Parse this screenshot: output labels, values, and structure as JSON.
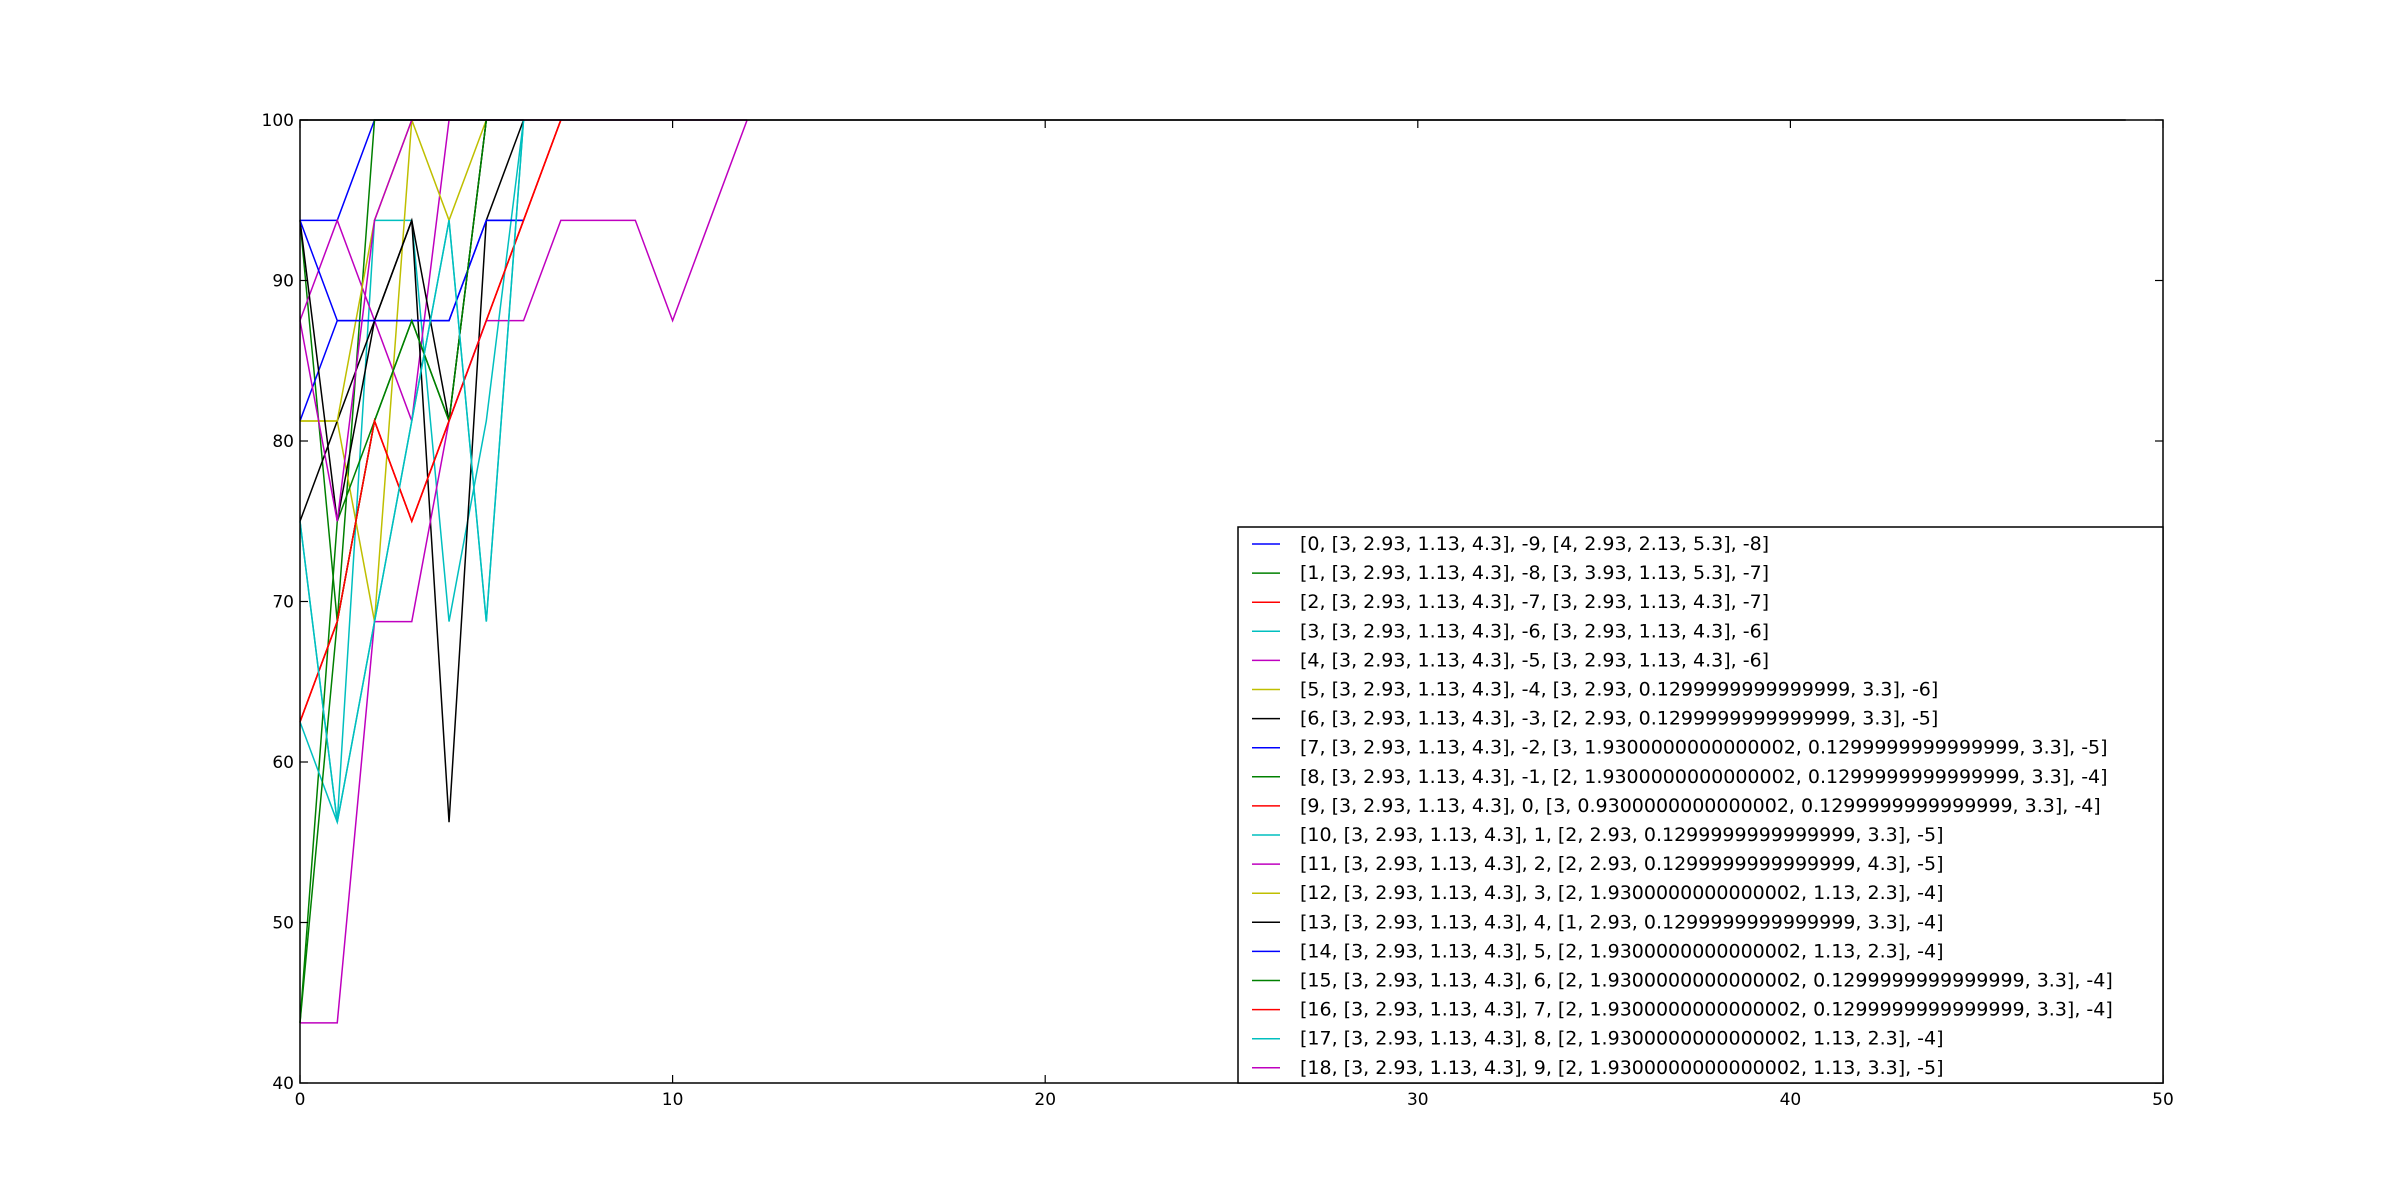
{
  "chart_data": {
    "type": "line",
    "title": "",
    "xlabel": "",
    "ylabel": "",
    "xlim": [
      0,
      50
    ],
    "ylim": [
      40,
      100
    ],
    "xticks": [
      0,
      10,
      20,
      30,
      40,
      50
    ],
    "yticks": [
      40,
      50,
      60,
      70,
      80,
      90,
      100
    ],
    "grid": false,
    "legend_position": "lower-right",
    "series": [
      {
        "name": "[0, [3, 2.93, 1.13, 4.3], -9, [4, 2.93, 2.13, 5.3], -8]",
        "color": "#0000ff",
        "x": [
          0,
          1,
          2,
          3,
          4,
          5,
          6
        ],
        "y": [
          93.75,
          93.75,
          100,
          100,
          100,
          100,
          100
        ]
      },
      {
        "name": "[1, [3, 2.93, 1.13, 4.3], -8, [3, 3.93, 1.13, 5.3], -7]",
        "color": "#008000",
        "x": [
          0,
          1,
          2,
          3,
          4,
          5,
          6
        ],
        "y": [
          93.75,
          68.75,
          100,
          100,
          100,
          100,
          100
        ]
      },
      {
        "name": "[2, [3, 2.93, 1.13, 4.3], -7, [3, 2.93, 1.13, 4.3], -7]",
        "color": "#ff0000",
        "x": [
          0,
          1,
          2,
          3,
          4,
          5,
          6,
          7
        ],
        "y": [
          62.5,
          68.75,
          81.25,
          75,
          81.25,
          87.5,
          93.75,
          100
        ]
      },
      {
        "name": "[3, [3, 2.93, 1.13, 4.3], -6, [3, 2.93, 1.13, 4.3], -6]",
        "color": "#00bfbf",
        "x": [
          0,
          1,
          2,
          3,
          4,
          5,
          6
        ],
        "y": [
          75,
          56.25,
          93.75,
          93.75,
          68.75,
          81.25,
          100
        ]
      },
      {
        "name": "[4, [3, 2.93, 1.13, 4.3], -5, [3, 2.93, 1.13, 4.3], -6]",
        "color": "#bf00bf",
        "x": [
          0,
          1,
          2,
          3,
          4
        ],
        "y": [
          87.5,
          93.75,
          87.5,
          81.25,
          100
        ]
      },
      {
        "name": "[5, [3, 2.93, 1.13, 4.3], -4, [3, 2.93, 0.1299999999999999, 3.3], -6]",
        "color": "#bfbf00",
        "x": [
          0,
          1,
          2,
          3,
          4,
          5
        ],
        "y": [
          81.25,
          81.25,
          68.75,
          100,
          93.75,
          100
        ]
      },
      {
        "name": "[6, [3, 2.93, 1.13, 4.3], -3, [2, 2.93, 0.1299999999999999, 3.3], -5]",
        "color": "#000000",
        "x": [
          0,
          1,
          2,
          3,
          4,
          5,
          6
        ],
        "y": [
          75,
          81.25,
          87.5,
          93.75,
          56.25,
          93.75,
          100
        ]
      },
      {
        "name": "[7, [3, 2.93, 1.13, 4.3], -2, [3, 1.9300000000000002, 0.1299999999999999, 3.3], -5]",
        "color": "#0000ff",
        "x": [
          0,
          1,
          2,
          3,
          4,
          5,
          6
        ],
        "y": [
          81.25,
          87.5,
          87.5,
          87.5,
          87.5,
          93.75,
          93.75
        ]
      },
      {
        "name": "[8, [3, 2.93, 1.13, 4.3], -1, [2, 1.9300000000000002, 0.1299999999999999, 3.3], -4]",
        "color": "#008000",
        "x": [
          0,
          1,
          2,
          3,
          4,
          5
        ],
        "y": [
          43.75,
          75,
          81.25,
          87.5,
          81.25,
          100
        ]
      },
      {
        "name": "[9, [3, 2.93, 1.13, 4.3], 0, [3, 0.9300000000000002, 0.1299999999999999, 3.3], -4]",
        "color": "#ff0000",
        "x": [
          0,
          1,
          2,
          3,
          4,
          5,
          6,
          7
        ],
        "y": [
          62.5,
          68.75,
          81.25,
          75,
          81.25,
          87.5,
          93.75,
          100
        ]
      },
      {
        "name": "[10, [3, 2.93, 1.13, 4.3], 1, [2, 2.93, 0.1299999999999999, 3.3], -5]",
        "color": "#00bfbf",
        "x": [
          0,
          1,
          2,
          3,
          4,
          5,
          6
        ],
        "y": [
          62.5,
          56.25,
          68.75,
          81.25,
          93.75,
          68.75,
          100
        ]
      },
      {
        "name": "[11, [3, 2.93, 1.13, 4.3], 2, [2, 2.93, 0.1299999999999999, 4.3], -5]",
        "color": "#bf00bf",
        "x": [
          0,
          1,
          2,
          3,
          4,
          5,
          6,
          7,
          8,
          9,
          10,
          11,
          12
        ],
        "y": [
          43.75,
          43.75,
          68.75,
          68.75,
          81.25,
          87.5,
          87.5,
          93.75,
          93.75,
          93.75,
          87.5,
          93.75,
          100
        ]
      },
      {
        "name": "[12, [3, 2.93, 1.13, 4.3], 3, [2, 1.9300000000000002, 1.13, 2.3], -4]",
        "color": "#bfbf00",
        "x": [
          0,
          1,
          2,
          3
        ],
        "y": [
          81.25,
          81.25,
          93.75,
          100
        ]
      },
      {
        "name": "[13, [3, 2.93, 1.13, 4.3], 4, [1, 2.93, 0.1299999999999999, 3.3], -4]",
        "color": "#000000",
        "x": [
          0,
          1,
          2,
          3,
          4,
          5
        ],
        "y": [
          93.75,
          75,
          87.5,
          93.75,
          81.25,
          100
        ]
      },
      {
        "name": "[14, [3, 2.93, 1.13, 4.3], 5, [2, 1.9300000000000002, 1.13, 2.3], -4]",
        "color": "#0000ff",
        "x": [
          0,
          1,
          2,
          3,
          4,
          5,
          6
        ],
        "y": [
          93.75,
          87.5,
          87.5,
          87.5,
          87.5,
          93.75,
          93.75
        ]
      },
      {
        "name": "[15, [3, 2.93, 1.13, 4.3], 6, [2, 1.9300000000000002, 0.1299999999999999, 3.3], -4]",
        "color": "#008000",
        "x": [
          0,
          1,
          2,
          3,
          4,
          5
        ],
        "y": [
          43.75,
          68.75,
          81.25,
          87.5,
          81.25,
          100
        ]
      },
      {
        "name": "[16, [3, 2.93, 1.13, 4.3], 7, [2, 1.9300000000000002, 0.1299999999999999, 3.3], -4]",
        "color": "#ff0000",
        "x": [
          0,
          1,
          2,
          3,
          4,
          5,
          6,
          7
        ],
        "y": [
          62.5,
          68.75,
          81.25,
          75,
          81.25,
          87.5,
          93.75,
          100
        ]
      },
      {
        "name": "[17, [3, 2.93, 1.13, 4.3], 8, [2, 1.9300000000000002, 1.13, 2.3], -4]",
        "color": "#00bfbf",
        "x": [
          0,
          1,
          2,
          3,
          4,
          5,
          6
        ],
        "y": [
          75,
          56.25,
          68.75,
          81.25,
          93.75,
          68.75,
          100
        ]
      },
      {
        "name": "[18, [3, 2.93, 1.13, 4.3], 9, [2, 1.9300000000000002, 1.13, 3.3], -5]",
        "color": "#bf00bf",
        "x": [
          0,
          1,
          2,
          3,
          4,
          5,
          6,
          7,
          8,
          9,
          10,
          11,
          12
        ],
        "y": [
          87.5,
          75,
          93.75,
          100,
          100,
          100,
          100,
          100,
          100,
          100,
          100,
          100,
          100
        ]
      }
    ],
    "common_plateau": {
      "color": "#000000",
      "x": [
        0,
        49
      ],
      "y": [
        100,
        100
      ]
    }
  }
}
